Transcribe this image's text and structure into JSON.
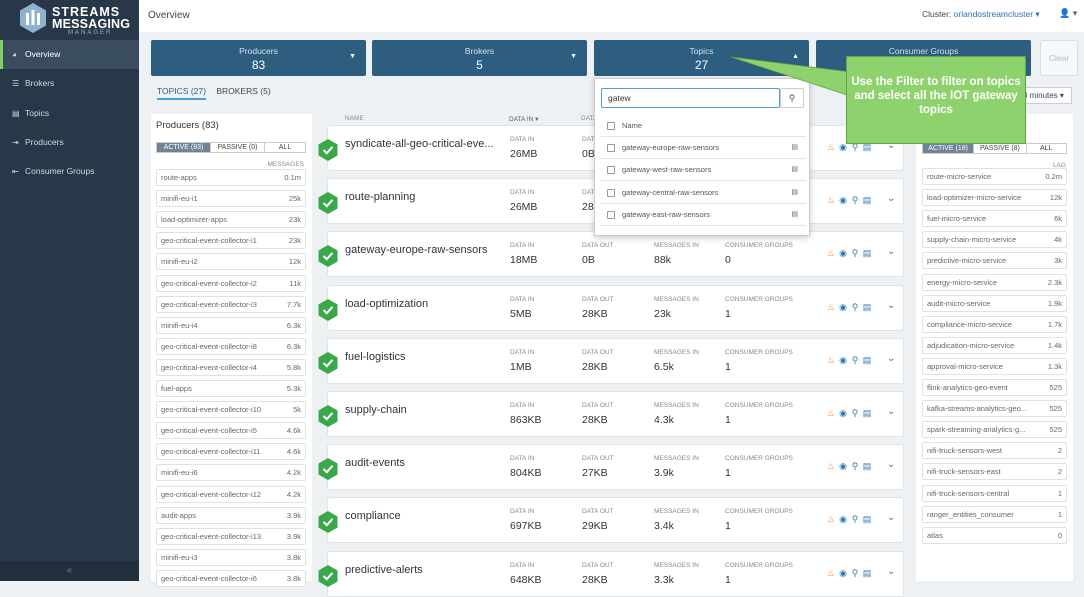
{
  "app": {
    "logo_line1": "STREAMS",
    "logo_line2": "MESSAGING",
    "logo_line3": "MANAGER"
  },
  "nav": [
    {
      "label": "Overview",
      "icon": "dashboard-icon",
      "active": true
    },
    {
      "label": "Brokers",
      "icon": "brokers-icon"
    },
    {
      "label": "Topics",
      "icon": "topics-icon"
    },
    {
      "label": "Producers",
      "icon": "producers-icon"
    },
    {
      "label": "Consumer Groups",
      "icon": "consumer-groups-icon"
    }
  ],
  "sidebar_collapse": "«",
  "header": {
    "title": "Overview",
    "cluster_label": "Cluster:",
    "cluster_value": "orlandostreamcluster ▾",
    "user": "👤 ▾"
  },
  "cards": [
    {
      "title": "Producers",
      "value": "83"
    },
    {
      "title": "Brokers",
      "value": "5"
    },
    {
      "title": "Topics",
      "value": "27"
    },
    {
      "title": "Consumer Groups",
      "value": ""
    }
  ],
  "clear_label": "Clear",
  "time_range": "0 minutes ▾",
  "tabs": [
    "TOPICS (27)",
    "BROKERS (5)"
  ],
  "producers": {
    "title": "Producers (83)",
    "filters": [
      "ACTIVE (83)",
      "PASSIVE (0)",
      "ALL"
    ],
    "col": "MESSAGES",
    "items": [
      {
        "name": "route-apps",
        "value": "0.1m"
      },
      {
        "name": "minifi-eu-i1",
        "value": "25k"
      },
      {
        "name": "load-optimizer-apps",
        "value": "23k"
      },
      {
        "name": "geo-critical-event-collector-i1",
        "value": "23k"
      },
      {
        "name": "minifi-eu-i2",
        "value": "12k"
      },
      {
        "name": "geo-critical-event-collector-i2",
        "value": "11k"
      },
      {
        "name": "geo-critical-event-collector-i3",
        "value": "7.7k"
      },
      {
        "name": "minifi-eu-i4",
        "value": "6.3k"
      },
      {
        "name": "geo-critical-event-collector-i8",
        "value": "6.3k"
      },
      {
        "name": "geo-critical-event-collector-i4",
        "value": "5.8k"
      },
      {
        "name": "fuel-apps",
        "value": "5.3k"
      },
      {
        "name": "geo-critical-event-collector-i10",
        "value": "5k"
      },
      {
        "name": "geo-critical-event-collector-i5",
        "value": "4.6k"
      },
      {
        "name": "geo-critical-event-collector-i11",
        "value": "4.6k"
      },
      {
        "name": "minifi-eu-i6",
        "value": "4.2k"
      },
      {
        "name": "geo-critical-event-collector-i12",
        "value": "4.2k"
      },
      {
        "name": "audit-apps",
        "value": "3.9k"
      },
      {
        "name": "geo-critical-event-collector-i13",
        "value": "3.9k"
      },
      {
        "name": "minifi-eu-i3",
        "value": "3.8k"
      },
      {
        "name": "geo-critical-event-collector-i6",
        "value": "3.8k"
      }
    ]
  },
  "topics": {
    "col_name": "NAME",
    "col_datain": "DATA IN ▾",
    "col_dataout": "DATA",
    "labels": {
      "data_in": "DATA IN",
      "data_out": "DATA OUT",
      "messages_in": "MESSAGES IN",
      "consumer_groups": "CONSUMER GROUPS"
    },
    "rows": [
      {
        "name": "syndicate-all-geo-critical-eve...",
        "data_in": "26MB",
        "data_out": "0B",
        "messages_in": "",
        "consumer_groups": ""
      },
      {
        "name": "route-planning",
        "data_in": "26MB",
        "data_out": "28",
        "messages_in": "",
        "consumer_groups": ""
      },
      {
        "name": "gateway-europe-raw-sensors",
        "data_in": "18MB",
        "data_out": "0B",
        "messages_in": "88k",
        "consumer_groups": "0"
      },
      {
        "name": "load-optimization",
        "data_in": "5MB",
        "data_out": "28KB",
        "messages_in": "23k",
        "consumer_groups": "1"
      },
      {
        "name": "fuel-logistics",
        "data_in": "1MB",
        "data_out": "28KB",
        "messages_in": "6.5k",
        "consumer_groups": "1"
      },
      {
        "name": "supply-chain",
        "data_in": "863KB",
        "data_out": "28KB",
        "messages_in": "4.3k",
        "consumer_groups": "1"
      },
      {
        "name": "audit-events",
        "data_in": "804KB",
        "data_out": "27KB",
        "messages_in": "3.9k",
        "consumer_groups": "1"
      },
      {
        "name": "compliance",
        "data_in": "697KB",
        "data_out": "29KB",
        "messages_in": "3.4k",
        "consumer_groups": "1"
      },
      {
        "name": "predictive-alerts",
        "data_in": "648KB",
        "data_out": "28KB",
        "messages_in": "3.3k",
        "consumer_groups": "1"
      }
    ]
  },
  "filter_dropdown": {
    "query": "gatew",
    "header": "Name",
    "items": [
      "gateway-europe-raw-sensors",
      "gateway-west-raw-sensors",
      "gateway-central-raw-sensors",
      "gateway-east-raw-sensors"
    ]
  },
  "callout": "Use the Filter to filter on topics and select all the IOT gateway topics",
  "consumers": {
    "filters": [
      "ACTIVE (18)",
      "PASSIVE (8)",
      "ALL"
    ],
    "col": "LAG",
    "items": [
      {
        "name": "route-micro-service",
        "value": "0.2m"
      },
      {
        "name": "load-optimizer-micro-service",
        "value": "12k"
      },
      {
        "name": "fuel-micro-service",
        "value": "6k"
      },
      {
        "name": "supply-chain-micro-service",
        "value": "4k"
      },
      {
        "name": "predictive-micro-service",
        "value": "3k"
      },
      {
        "name": "energy-micro-service",
        "value": "2.3k"
      },
      {
        "name": "audit-micro-service",
        "value": "1.9k"
      },
      {
        "name": "compliance-micro-service",
        "value": "1.7k"
      },
      {
        "name": "adjudication-micro-service",
        "value": "1.4k"
      },
      {
        "name": "approval-micro-service",
        "value": "1.3k"
      },
      {
        "name": "flink-analytics-geo-event",
        "value": "525"
      },
      {
        "name": "kafka-streams-analytics-geo...",
        "value": "525"
      },
      {
        "name": "spark-streaming-analytics-g...",
        "value": "525"
      },
      {
        "name": "nifi-truck-sensors-west",
        "value": "2"
      },
      {
        "name": "nifi-truck-sensors-east",
        "value": "2"
      },
      {
        "name": "nifi-truck-sensors-central",
        "value": "1"
      },
      {
        "name": "ranger_entities_consumer",
        "value": "1"
      },
      {
        "name": "atlas",
        "value": "0"
      }
    ]
  },
  "colors": {
    "sidebar": "#283848",
    "card": "#2d5e80",
    "accent_green": "#7fd35f",
    "callout": "#8ed26e",
    "link": "#2f6fb5"
  }
}
